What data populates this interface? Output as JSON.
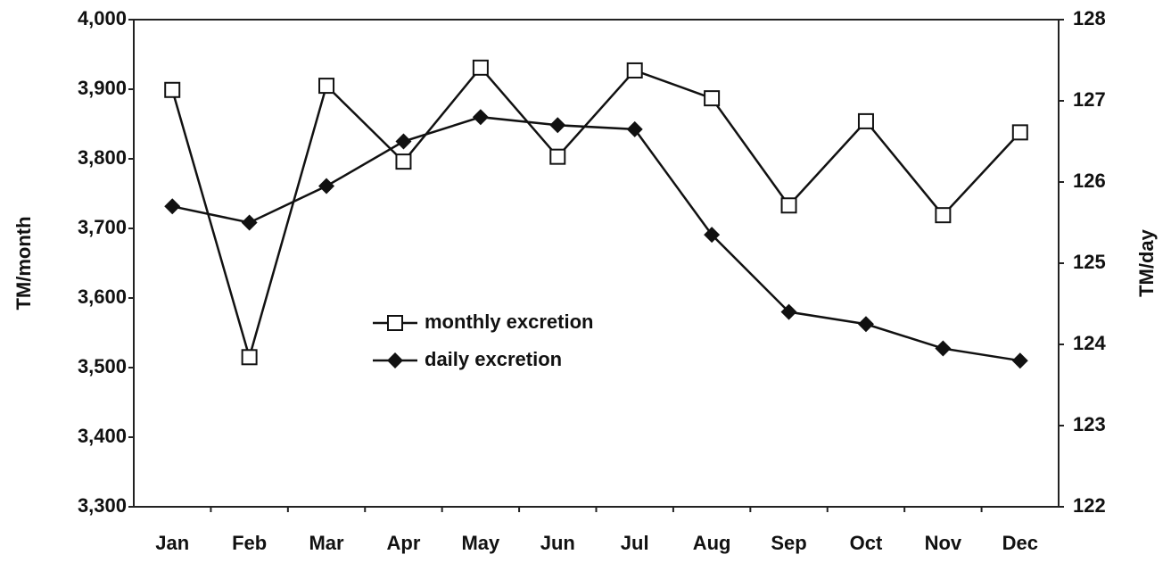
{
  "chart_data": {
    "type": "line",
    "categories": [
      "Jan",
      "Feb",
      "Mar",
      "Apr",
      "May",
      "Jun",
      "Jul",
      "Aug",
      "Sep",
      "Oct",
      "Nov",
      "Dec"
    ],
    "series": [
      {
        "name": "monthly excretion",
        "color": "#111111",
        "marker": "square",
        "values": [
          3899,
          3515,
          3905,
          3796,
          3931,
          3803,
          3927,
          3887,
          3733,
          3854,
          3719,
          3838
        ]
      },
      {
        "name": "daily excretion",
        "color": "#111111",
        "marker": "diamond",
        "axis": "y2",
        "values": [
          125.7,
          125.5,
          125.95,
          126.5,
          126.8,
          126.7,
          126.65,
          125.35,
          124.4,
          124.25,
          123.95,
          123.8
        ]
      }
    ],
    "y_label": "TM/month",
    "y2_label": "TM/day",
    "ylim": [
      3300,
      4000
    ],
    "yticks": [
      {
        "value": 3300,
        "label": "3,300"
      },
      {
        "value": 3400,
        "label": "3,400"
      },
      {
        "value": 3500,
        "label": "3,500"
      },
      {
        "value": 3600,
        "label": "3,600"
      },
      {
        "value": 3700,
        "label": "3,700"
      },
      {
        "value": 3800,
        "label": "3,800"
      },
      {
        "value": 3900,
        "label": "3,900"
      },
      {
        "value": 4000,
        "label": "4,000"
      }
    ],
    "y2lim": [
      122,
      128
    ],
    "y2ticks": [
      122,
      123,
      124,
      125,
      126,
      127,
      128
    ],
    "legend": "center",
    "grid": false
  }
}
